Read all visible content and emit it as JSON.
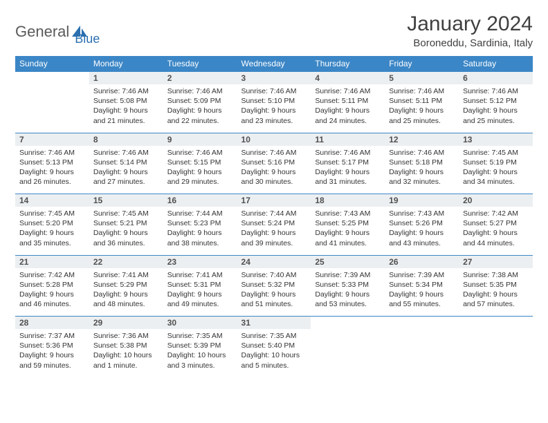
{
  "brand": {
    "name_part1": "General",
    "name_part2": "Blue"
  },
  "title": "January 2024",
  "location": "Boroneddu, Sardinia, Italy",
  "colors": {
    "header_bg": "#3b86c6",
    "header_text": "#ffffff",
    "daynum_bg": "#eceff1",
    "border": "#3b86c6",
    "text": "#333333",
    "logo_gray": "#5a5a5a",
    "logo_blue": "#2b6fb0"
  },
  "days_of_week": [
    "Sunday",
    "Monday",
    "Tuesday",
    "Wednesday",
    "Thursday",
    "Friday",
    "Saturday"
  ],
  "weeks": [
    [
      null,
      {
        "n": "1",
        "sr": "7:46 AM",
        "ss": "5:08 PM",
        "dl": "9 hours and 21 minutes."
      },
      {
        "n": "2",
        "sr": "7:46 AM",
        "ss": "5:09 PM",
        "dl": "9 hours and 22 minutes."
      },
      {
        "n": "3",
        "sr": "7:46 AM",
        "ss": "5:10 PM",
        "dl": "9 hours and 23 minutes."
      },
      {
        "n": "4",
        "sr": "7:46 AM",
        "ss": "5:11 PM",
        "dl": "9 hours and 24 minutes."
      },
      {
        "n": "5",
        "sr": "7:46 AM",
        "ss": "5:11 PM",
        "dl": "9 hours and 25 minutes."
      },
      {
        "n": "6",
        "sr": "7:46 AM",
        "ss": "5:12 PM",
        "dl": "9 hours and 25 minutes."
      }
    ],
    [
      {
        "n": "7",
        "sr": "7:46 AM",
        "ss": "5:13 PM",
        "dl": "9 hours and 26 minutes."
      },
      {
        "n": "8",
        "sr": "7:46 AM",
        "ss": "5:14 PM",
        "dl": "9 hours and 27 minutes."
      },
      {
        "n": "9",
        "sr": "7:46 AM",
        "ss": "5:15 PM",
        "dl": "9 hours and 29 minutes."
      },
      {
        "n": "10",
        "sr": "7:46 AM",
        "ss": "5:16 PM",
        "dl": "9 hours and 30 minutes."
      },
      {
        "n": "11",
        "sr": "7:46 AM",
        "ss": "5:17 PM",
        "dl": "9 hours and 31 minutes."
      },
      {
        "n": "12",
        "sr": "7:46 AM",
        "ss": "5:18 PM",
        "dl": "9 hours and 32 minutes."
      },
      {
        "n": "13",
        "sr": "7:45 AM",
        "ss": "5:19 PM",
        "dl": "9 hours and 34 minutes."
      }
    ],
    [
      {
        "n": "14",
        "sr": "7:45 AM",
        "ss": "5:20 PM",
        "dl": "9 hours and 35 minutes."
      },
      {
        "n": "15",
        "sr": "7:45 AM",
        "ss": "5:21 PM",
        "dl": "9 hours and 36 minutes."
      },
      {
        "n": "16",
        "sr": "7:44 AM",
        "ss": "5:23 PM",
        "dl": "9 hours and 38 minutes."
      },
      {
        "n": "17",
        "sr": "7:44 AM",
        "ss": "5:24 PM",
        "dl": "9 hours and 39 minutes."
      },
      {
        "n": "18",
        "sr": "7:43 AM",
        "ss": "5:25 PM",
        "dl": "9 hours and 41 minutes."
      },
      {
        "n": "19",
        "sr": "7:43 AM",
        "ss": "5:26 PM",
        "dl": "9 hours and 43 minutes."
      },
      {
        "n": "20",
        "sr": "7:42 AM",
        "ss": "5:27 PM",
        "dl": "9 hours and 44 minutes."
      }
    ],
    [
      {
        "n": "21",
        "sr": "7:42 AM",
        "ss": "5:28 PM",
        "dl": "9 hours and 46 minutes."
      },
      {
        "n": "22",
        "sr": "7:41 AM",
        "ss": "5:29 PM",
        "dl": "9 hours and 48 minutes."
      },
      {
        "n": "23",
        "sr": "7:41 AM",
        "ss": "5:31 PM",
        "dl": "9 hours and 49 minutes."
      },
      {
        "n": "24",
        "sr": "7:40 AM",
        "ss": "5:32 PM",
        "dl": "9 hours and 51 minutes."
      },
      {
        "n": "25",
        "sr": "7:39 AM",
        "ss": "5:33 PM",
        "dl": "9 hours and 53 minutes."
      },
      {
        "n": "26",
        "sr": "7:39 AM",
        "ss": "5:34 PM",
        "dl": "9 hours and 55 minutes."
      },
      {
        "n": "27",
        "sr": "7:38 AM",
        "ss": "5:35 PM",
        "dl": "9 hours and 57 minutes."
      }
    ],
    [
      {
        "n": "28",
        "sr": "7:37 AM",
        "ss": "5:36 PM",
        "dl": "9 hours and 59 minutes."
      },
      {
        "n": "29",
        "sr": "7:36 AM",
        "ss": "5:38 PM",
        "dl": "10 hours and 1 minute."
      },
      {
        "n": "30",
        "sr": "7:35 AM",
        "ss": "5:39 PM",
        "dl": "10 hours and 3 minutes."
      },
      {
        "n": "31",
        "sr": "7:35 AM",
        "ss": "5:40 PM",
        "dl": "10 hours and 5 minutes."
      },
      null,
      null,
      null
    ]
  ],
  "labels": {
    "sunrise": "Sunrise:",
    "sunset": "Sunset:",
    "daylight": "Daylight:"
  }
}
